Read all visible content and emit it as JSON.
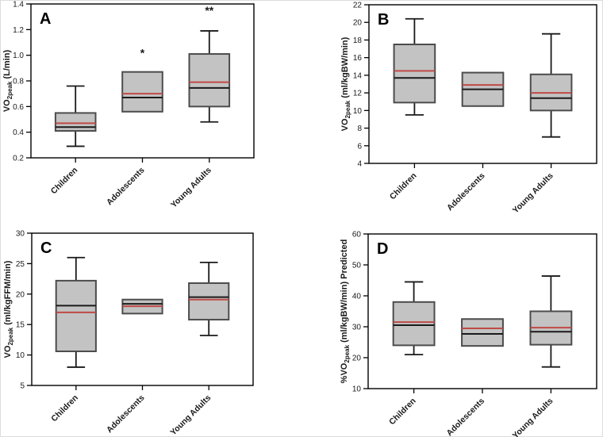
{
  "style": {
    "background": "#ffffff",
    "frame_color": "#000000",
    "box_fill": "#c3c3c3",
    "box_stroke": "#4c4c4c",
    "median_color": "#1a1a1a",
    "mean_color": "#bf4a47",
    "whisker_color": "#1a1a1a",
    "text_color": "#1a1a1a"
  },
  "chart_data": [
    {
      "type": "box",
      "panel_label": "A",
      "ylabel": {
        "pre": "VO",
        "sub": "2peak",
        "post": " (L/min)"
      },
      "ylim": [
        0.2,
        1.4
      ],
      "yticks": [
        "0.2",
        "0.4",
        "0.6",
        "0.8",
        "1.0",
        "1.2",
        "1.4"
      ],
      "categories": [
        "Children",
        "Adolescents",
        "Young Adults"
      ],
      "grid": "off",
      "boxes": [
        {
          "category": "Children",
          "whisker_low": 0.29,
          "q1": 0.41,
          "median": 0.44,
          "mean": 0.47,
          "q3": 0.55,
          "whisker_high": 0.76,
          "annotation": ""
        },
        {
          "category": "Adolescents",
          "whisker_low": null,
          "q1": 0.56,
          "median": 0.67,
          "mean": 0.7,
          "q3": 0.87,
          "whisker_high": null,
          "annotation": "*",
          "annotation_y": 0.99
        },
        {
          "category": "Young Adults",
          "whisker_low": 0.48,
          "q1": 0.6,
          "median": 0.745,
          "mean": 0.79,
          "q3": 1.01,
          "whisker_high": 1.19,
          "annotation": "**",
          "annotation_y": 1.32
        }
      ]
    },
    {
      "type": "box",
      "panel_label": "B",
      "ylabel": {
        "pre": "VO",
        "sub": "2peak",
        "post": " (ml/kgBW/min)"
      },
      "ylim": [
        4,
        22
      ],
      "yticks": [
        "4",
        "6",
        "8",
        "10",
        "12",
        "14",
        "16",
        "18",
        "20",
        "22"
      ],
      "categories": [
        "Children",
        "Adolescents",
        "Young Adults"
      ],
      "grid": "off",
      "boxes": [
        {
          "category": "Children",
          "whisker_low": 9.5,
          "q1": 10.9,
          "median": 13.7,
          "mean": 14.5,
          "q3": 17.5,
          "whisker_high": 20.4,
          "annotation": ""
        },
        {
          "category": "Adolescents",
          "whisker_low": null,
          "q1": 10.5,
          "median": 12.4,
          "mean": 12.9,
          "q3": 14.3,
          "whisker_high": null,
          "annotation": ""
        },
        {
          "category": "Young Adults",
          "whisker_low": 7.0,
          "q1": 10.0,
          "median": 11.4,
          "mean": 12.0,
          "q3": 14.1,
          "whisker_high": 18.7,
          "annotation": ""
        }
      ]
    },
    {
      "type": "box",
      "panel_label": "C",
      "ylabel": {
        "pre": "VO",
        "sub": "2peak",
        "post": " (ml/kgFFM/min)"
      },
      "ylim": [
        5,
        30
      ],
      "yticks": [
        "5",
        "10",
        "15",
        "20",
        "25",
        "30"
      ],
      "categories": [
        "Children",
        "Adolescents",
        "Young Adults"
      ],
      "grid": "off",
      "boxes": [
        {
          "category": "Children",
          "whisker_low": 8.0,
          "q1": 10.6,
          "median": 18.1,
          "mean": 17.0,
          "q3": 22.2,
          "whisker_high": 26.0,
          "annotation": ""
        },
        {
          "category": "Adolescents",
          "whisker_low": null,
          "q1": 16.8,
          "median": 18.4,
          "mean": 18.0,
          "q3": 19.1,
          "whisker_high": null,
          "annotation": ""
        },
        {
          "category": "Young Adults",
          "whisker_low": 13.2,
          "q1": 15.8,
          "median": 19.5,
          "mean": 19.1,
          "q3": 21.8,
          "whisker_high": 25.2,
          "annotation": ""
        }
      ]
    },
    {
      "type": "box",
      "panel_label": "D",
      "ylabel": {
        "pre": "%VO",
        "sub": "2peak",
        "post": " (ml/kgBW/min) Predicted"
      },
      "ylim": [
        10,
        60
      ],
      "yticks": [
        "10",
        "20",
        "30",
        "40",
        "50",
        "60"
      ],
      "categories": [
        "Children",
        "Adolescents",
        "Young Adults"
      ],
      "grid": "off",
      "boxes": [
        {
          "category": "Children",
          "whisker_low": 21.0,
          "q1": 24.0,
          "median": 30.5,
          "mean": 31.5,
          "q3": 38.0,
          "whisker_high": 44.5,
          "annotation": ""
        },
        {
          "category": "Adolescents",
          "whisker_low": null,
          "q1": 23.8,
          "median": 27.7,
          "mean": 29.5,
          "q3": 32.5,
          "whisker_high": null,
          "annotation": ""
        },
        {
          "category": "Young Adults",
          "whisker_low": 17.0,
          "q1": 24.2,
          "median": 28.4,
          "mean": 29.7,
          "q3": 35.0,
          "whisker_high": 46.4,
          "annotation": ""
        }
      ]
    }
  ]
}
